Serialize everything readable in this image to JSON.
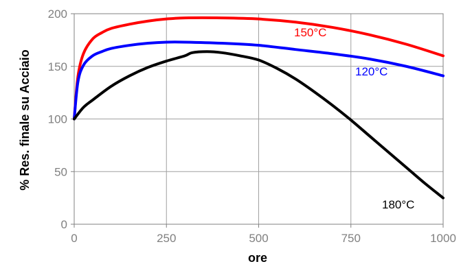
{
  "chart_data": {
    "type": "line",
    "xlabel": "ore",
    "ylabel": "% Res. finale su Acciaio",
    "xlim": [
      0,
      1000
    ],
    "ylim": [
      0,
      200
    ],
    "x_ticks": [
      "0",
      "250",
      "500",
      "750",
      "1000"
    ],
    "y_ticks": [
      "0",
      "50",
      "100",
      "150",
      "200"
    ],
    "grid": true,
    "legend": "labels placed next to each curve",
    "series": [
      {
        "name": "150°C",
        "color": "#ff0000",
        "x": [
          0,
          10,
          25,
          50,
          75,
          100,
          150,
          200,
          250,
          300,
          400,
          500,
          600,
          700,
          800,
          900,
          1000
        ],
        "y": [
          100,
          140,
          162,
          176,
          182,
          186,
          190,
          193,
          195,
          196,
          196,
          195,
          192,
          187,
          180,
          171,
          160
        ]
      },
      {
        "name": "120°C",
        "color": "#0000ff",
        "x": [
          0,
          10,
          25,
          50,
          75,
          100,
          150,
          200,
          250,
          300,
          400,
          500,
          600,
          700,
          800,
          900,
          1000
        ],
        "y": [
          100,
          135,
          151,
          160,
          164,
          167,
          170,
          172,
          173,
          173,
          172,
          170,
          166,
          162,
          157,
          150,
          141
        ]
      },
      {
        "name": "180°C",
        "color": "#000000",
        "x": [
          0,
          25,
          50,
          100,
          150,
          200,
          250,
          300,
          320,
          360,
          400,
          450,
          500,
          550,
          600,
          650,
          700,
          750,
          800,
          850,
          900,
          950,
          1000
        ],
        "y": [
          100,
          111,
          118,
          131,
          141,
          149,
          155,
          160,
          163,
          164,
          163,
          160,
          156,
          148,
          138,
          126,
          113,
          99,
          84,
          69,
          54,
          39,
          25
        ]
      }
    ]
  }
}
